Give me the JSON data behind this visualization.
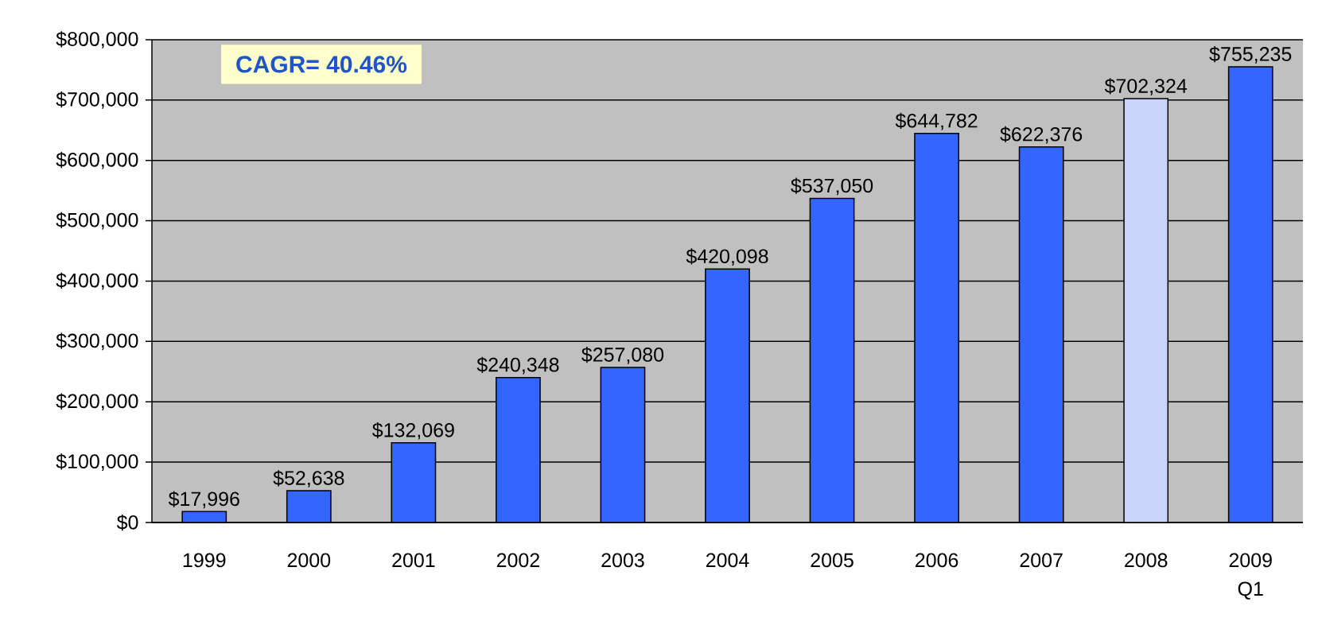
{
  "chart_data": {
    "type": "bar",
    "categories": [
      "1999",
      "2000",
      "2001",
      "2002",
      "2003",
      "2004",
      "2005",
      "2006",
      "2007",
      "2008",
      "2009 Q1"
    ],
    "values": [
      17996,
      52638,
      132069,
      240348,
      257080,
      420098,
      537050,
      644782,
      622376,
      702324,
      755235
    ],
    "value_labels": [
      "$17,996",
      "$52,638",
      "$132,069",
      "$240,348",
      "$257,080",
      "$420,098",
      "$537,050",
      "$644,782",
      "$622,376",
      "$702,324",
      "$755,235"
    ],
    "colors": [
      "#3366ff",
      "#3366ff",
      "#3366ff",
      "#3366ff",
      "#3366ff",
      "#3366ff",
      "#3366ff",
      "#3366ff",
      "#3366ff",
      "#c8d4fa",
      "#3366ff"
    ],
    "ylim": [
      0,
      800000
    ],
    "yticks": [
      {
        "value": 0,
        "label": "$0"
      },
      {
        "value": 100000,
        "label": "$100,000"
      },
      {
        "value": 200000,
        "label": "$200,000"
      },
      {
        "value": 300000,
        "label": "$300,000"
      },
      {
        "value": 400000,
        "label": "$400,000"
      },
      {
        "value": 500000,
        "label": "$500,000"
      },
      {
        "value": 600000,
        "label": "$600,000"
      },
      {
        "value": 700000,
        "label": "$700,000"
      },
      {
        "value": 800000,
        "label": "$800,000"
      }
    ],
    "grid": "y",
    "annotations": [
      "CAGR= 40.46%"
    ]
  }
}
